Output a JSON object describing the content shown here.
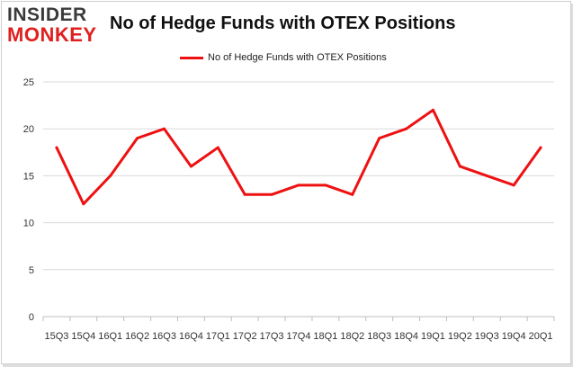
{
  "logo": {
    "line1": "INSIDER",
    "line2": "MONKEY"
  },
  "legend": {
    "label": "No of Hedge Funds with OTEX Positions",
    "color": "#ee1111"
  },
  "chart_data": {
    "type": "line",
    "title": "No of Hedge Funds with OTEX Positions",
    "xlabel": "",
    "ylabel": "",
    "categories": [
      "15Q3",
      "15Q4",
      "16Q1",
      "16Q2",
      "16Q3",
      "16Q4",
      "17Q1",
      "17Q2",
      "17Q3",
      "17Q4",
      "18Q1",
      "18Q2",
      "18Q3",
      "18Q4",
      "19Q1",
      "19Q2",
      "19Q3",
      "19Q4",
      "20Q1"
    ],
    "series": [
      {
        "name": "No of Hedge Funds with OTEX Positions",
        "color": "#ee1111",
        "values": [
          18,
          12,
          15,
          19,
          20,
          16,
          18,
          13,
          13,
          14,
          14,
          13,
          19,
          20,
          22,
          16,
          15,
          14,
          18
        ]
      }
    ],
    "ylim": [
      0,
      25
    ],
    "yticks": [
      0,
      5,
      10,
      15,
      20,
      25
    ],
    "grid": "horizontal",
    "legend_position": "top-center"
  }
}
